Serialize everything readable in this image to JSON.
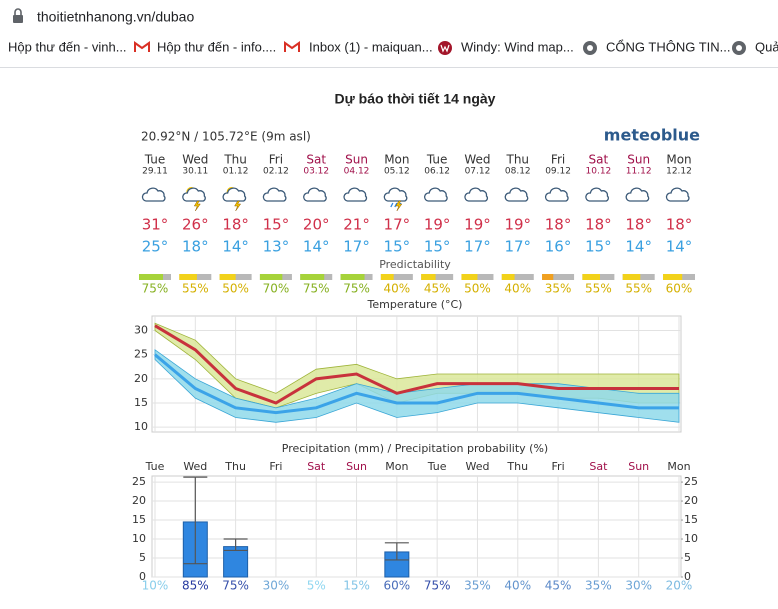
{
  "browser": {
    "url": "thoitietnhanong.vn/dubao",
    "bookmarks": [
      "Hộp thư đến - vinh...",
      "Hộp thư đến - info....",
      "Inbox (1) - maiquan...",
      "Windy: Wind map...",
      "CỔNG THÔNG TIN...",
      "Quả"
    ]
  },
  "page_title": "Dự báo thời tiết 14 ngày",
  "meteogram": {
    "location": "20.92°N / 105.72°E (9m asl)",
    "brand": "meteoblue",
    "predictability_title": "Predictability",
    "days": [
      {
        "day": "Tue",
        "date": "29.11",
        "max": "31°",
        "min": "25°",
        "icon": "cloud",
        "day_color": "#333333",
        "predictability": 75,
        "predictability_label": "75%",
        "predictability_color": "#a6d33a"
      },
      {
        "day": "Wed",
        "date": "30.11",
        "max": "26°",
        "min": "18°",
        "icon": "sun-storm",
        "day_color": "#333333",
        "predictability": 55,
        "predictability_label": "55%",
        "predictability_color": "#f2d21a"
      },
      {
        "day": "Thu",
        "date": "01.12",
        "max": "18°",
        "min": "14°",
        "icon": "sun-storm",
        "day_color": "#333333",
        "predictability": 50,
        "predictability_label": "50%",
        "predictability_color": "#f2d21a"
      },
      {
        "day": "Fri",
        "date": "02.12",
        "max": "15°",
        "min": "13°",
        "icon": "cloud",
        "day_color": "#333333",
        "predictability": 70,
        "predictability_label": "70%",
        "predictability_color": "#a6d33a"
      },
      {
        "day": "Sat",
        "date": "03.12",
        "max": "20°",
        "min": "14°",
        "icon": "cloud",
        "day_color": "#a0104a",
        "predictability": 75,
        "predictability_label": "75%",
        "predictability_color": "#a6d33a"
      },
      {
        "day": "Sun",
        "date": "04.12",
        "max": "21°",
        "min": "17°",
        "icon": "cloud",
        "day_color": "#a0104a",
        "predictability": 75,
        "predictability_label": "75%",
        "predictability_color": "#a6d33a"
      },
      {
        "day": "Mon",
        "date": "05.12",
        "max": "17°",
        "min": "15°",
        "icon": "rain-storm",
        "day_color": "#333333",
        "predictability": 40,
        "predictability_label": "40%",
        "predictability_color": "#f2d21a"
      },
      {
        "day": "Tue",
        "date": "06.12",
        "max": "19°",
        "min": "15°",
        "icon": "cloud",
        "day_color": "#333333",
        "predictability": 45,
        "predictability_label": "45%",
        "predictability_color": "#f2d21a"
      },
      {
        "day": "Wed",
        "date": "07.12",
        "max": "19°",
        "min": "17°",
        "icon": "cloud",
        "day_color": "#333333",
        "predictability": 50,
        "predictability_label": "50%",
        "predictability_color": "#f2d21a"
      },
      {
        "day": "Thu",
        "date": "08.12",
        "max": "19°",
        "min": "17°",
        "icon": "cloud",
        "day_color": "#333333",
        "predictability": 40,
        "predictability_label": "40%",
        "predictability_color": "#f2d21a"
      },
      {
        "day": "Fri",
        "date": "09.12",
        "max": "18°",
        "min": "16°",
        "icon": "cloud",
        "day_color": "#333333",
        "predictability": 35,
        "predictability_label": "35%",
        "predictability_color": "#f0a020"
      },
      {
        "day": "Sat",
        "date": "10.12",
        "max": "18°",
        "min": "15°",
        "icon": "cloud",
        "day_color": "#a0104a",
        "predictability": 55,
        "predictability_label": "55%",
        "predictability_color": "#f2d21a"
      },
      {
        "day": "Sun",
        "date": "11.12",
        "max": "18°",
        "min": "14°",
        "icon": "cloud",
        "day_color": "#a0104a",
        "predictability": 55,
        "predictability_label": "55%",
        "predictability_color": "#f2d21a"
      },
      {
        "day": "Mon",
        "date": "12.12",
        "max": "18°",
        "min": "14°",
        "icon": "cloud",
        "day_color": "#333333",
        "predictability": 60,
        "predictability_label": "60%",
        "predictability_color": "#f2d21a"
      }
    ]
  },
  "chart_data": [
    {
      "type": "line",
      "title": "Temperature (°C)",
      "categories": [
        null,
        null,
        null,
        null,
        null,
        null,
        null,
        null,
        null,
        null,
        null,
        null,
        null,
        null
      ],
      "ylim": [
        9,
        33
      ],
      "yticks": [
        10,
        15,
        20,
        25,
        30
      ],
      "grid": true,
      "bands": [
        {
          "color": "#dbe79a",
          "stroke": "#9fb43a",
          "high": [
            31.5,
            28,
            20,
            17,
            22,
            23,
            20,
            21,
            21,
            21,
            21,
            21,
            21,
            21
          ],
          "low": [
            30,
            24,
            16,
            14,
            17,
            19,
            15,
            17,
            17,
            17,
            16,
            16,
            15,
            15
          ]
        },
        {
          "color": "#8fd9ea",
          "stroke": "#3aa6d6",
          "high": [
            26,
            20,
            16,
            14,
            16,
            19,
            17,
            18,
            19,
            19,
            19,
            18,
            17,
            17
          ],
          "low": [
            24,
            16,
            12,
            11,
            12,
            15,
            12,
            13,
            15,
            15,
            14,
            13,
            12,
            11
          ]
        }
      ],
      "series": [
        {
          "color": "#c8323c",
          "values": [
            31,
            26,
            18,
            15,
            20,
            21,
            17,
            19,
            19,
            19,
            18,
            18,
            18,
            18
          ]
        },
        {
          "color": "#3ba3e8",
          "values": [
            25,
            18,
            14,
            13,
            14,
            17,
            15,
            15,
            17,
            17,
            16,
            15,
            14,
            14
          ]
        }
      ]
    },
    {
      "type": "bar",
      "title": "Precipitation (mm) / Precipitation probability (%)",
      "categories": [
        "Tue",
        "Wed",
        "Thu",
        "Fri",
        "Sat",
        "Sun",
        "Mon",
        "Tue",
        "Wed",
        "Thu",
        "Fri",
        "Sat",
        "Sun",
        "Mon"
      ],
      "category_colors": [
        "#333333",
        "#333333",
        "#333333",
        "#333333",
        "#a0104a",
        "#a0104a",
        "#333333",
        "#333333",
        "#333333",
        "#333333",
        "#333333",
        "#a0104a",
        "#a0104a",
        "#333333"
      ],
      "values": [
        0,
        14.5,
        8,
        0,
        0,
        0,
        6.6,
        0,
        0,
        0,
        0,
        0,
        0,
        0
      ],
      "error_low": [
        null,
        3.5,
        7,
        null,
        null,
        null,
        4.5,
        null,
        null,
        null,
        null,
        null,
        null,
        null
      ],
      "error_high": [
        null,
        26.3,
        10,
        null,
        null,
        null,
        9,
        null,
        null,
        null,
        null,
        null,
        null,
        null
      ],
      "color": "#2f86e0",
      "ylim": [
        0,
        26.6
      ],
      "yticks": [
        0,
        5,
        10,
        15,
        20,
        25
      ],
      "y2lim": [
        0,
        26.6
      ],
      "y2ticks": [
        0,
        5,
        10,
        15,
        20,
        25
      ],
      "grid": true,
      "probability": [
        10,
        85,
        75,
        30,
        5,
        15,
        60,
        75,
        35,
        40,
        45,
        35,
        30,
        20
      ],
      "probability_labels": [
        "10%",
        "85%",
        "75%",
        "30%",
        "5%",
        "15%",
        "60%",
        "75%",
        "35%",
        "40%",
        "45%",
        "35%",
        "30%",
        "20%"
      ]
    }
  ]
}
